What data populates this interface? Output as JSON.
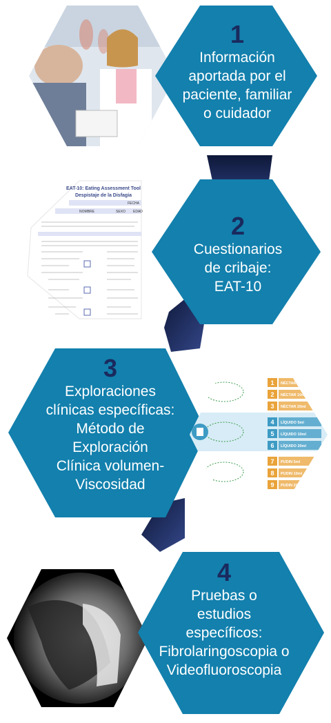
{
  "steps": [
    {
      "number": "1",
      "text": [
        "Información",
        "aportada por el",
        "paciente, familiar",
        "o cuidador"
      ],
      "image_icon": "doctor-patient-photo"
    },
    {
      "number": "2",
      "text": [
        "Cuestionarios",
        "de cribaje:",
        "EAT-10"
      ],
      "image_icon": "eat10-questionnaire-image"
    },
    {
      "number": "3",
      "text": [
        "Exploraciones",
        "clínicas específicas:",
        "Método de",
        "Exploración",
        "Clínica volumen-",
        "Viscosidad"
      ],
      "image_icon": "viscosity-table-image"
    },
    {
      "number": "4",
      "text": [
        "Pruebas o",
        "estudios",
        "específicos:",
        "Fibrolaringoscopia o",
        "Videofluoroscopia"
      ],
      "image_icon": "xray-image"
    }
  ],
  "doc": {
    "title": "EAT-10: Eating Assessment Tool",
    "subtitle": "Despistaje de la Disfagia",
    "fields": [
      "FECHA",
      "NOMBRE",
      "SEXO",
      "EDAD"
    ]
  },
  "viscosity": {
    "rows": [
      {
        "n": "1",
        "label": "NÉCTAR 5ml",
        "color": "#e9a33a"
      },
      {
        "n": "2",
        "label": "NÉCTAR 10ml",
        "color": "#e9a33a"
      },
      {
        "n": "3",
        "label": "NÉCTAR 20ml",
        "color": "#e9a33a"
      },
      {
        "n": "4",
        "label": "LÍQUIDO 5ml",
        "color": "#3d9bc4"
      },
      {
        "n": "5",
        "label": "LÍQUIDO 10ml",
        "color": "#3d9bc4"
      },
      {
        "n": "6",
        "label": "LÍQUIDO 20ml",
        "color": "#3d9bc4"
      },
      {
        "n": "7",
        "label": "PUDIN 5ml",
        "color": "#e9a33a"
      },
      {
        "n": "8",
        "label": "PUDIN 10ml",
        "color": "#e9a33a"
      },
      {
        "n": "9",
        "label": "PUDIN 20ml",
        "color": "#e9a33a"
      }
    ]
  },
  "colors": {
    "hex_blue": "#1380ad",
    "connector_navy": "#1a2a5e"
  }
}
